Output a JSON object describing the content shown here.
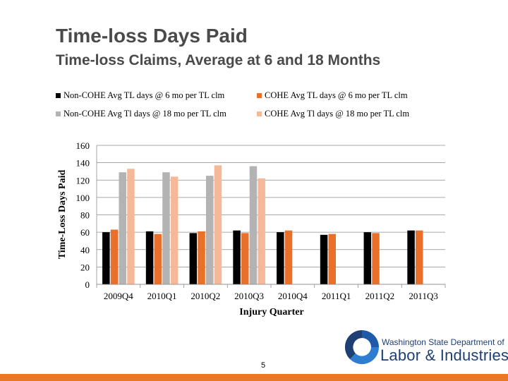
{
  "slide": {
    "title": "Time-loss Days Paid",
    "subtitle": "Time-loss Claims, Average at 6 and 18 Months",
    "page_number": "5"
  },
  "logo": {
    "line1": "Washington State Department of",
    "line2": "Labor & Industries"
  },
  "colors": {
    "non_cohe_6": "#000000",
    "cohe_6": "#e8702a",
    "non_cohe_18": "#b3b3b3",
    "cohe_18": "#f5b99a",
    "footer": "#e8782a",
    "logo_blue": "#1e5aa8"
  },
  "chart_data": {
    "type": "bar",
    "categories": [
      "2009Q4",
      "2010Q1",
      "2010Q2",
      "2010Q3",
      "2010Q4",
      "2011Q1",
      "2011Q2",
      "2011Q3"
    ],
    "series": [
      {
        "name": "Non-COHE Avg TL days @ 6 mo per TL clm",
        "color": "#000000",
        "values": [
          60,
          61,
          59,
          62,
          60,
          57,
          60,
          62
        ]
      },
      {
        "name": "COHE Avg TL days @ 6 mo per TL clm",
        "color": "#e8702a",
        "values": [
          63,
          58,
          61,
          59,
          62,
          58,
          59,
          62
        ]
      },
      {
        "name": "Non-COHE Avg Tl days @ 18 mo per TL clm",
        "color": "#b3b3b3",
        "values": [
          129,
          129,
          125,
          136,
          null,
          null,
          null,
          null
        ]
      },
      {
        "name": "COHE Avg Tl days @ 18 mo per TL clm",
        "color": "#f5b99a",
        "values": [
          133,
          124,
          137,
          122,
          null,
          null,
          null,
          null
        ]
      }
    ],
    "xlabel": "Injury Quarter",
    "ylabel": "Time-Loss Days Paid",
    "ylim": [
      0,
      160
    ],
    "yticks": [
      0,
      20,
      40,
      60,
      80,
      100,
      120,
      140,
      160
    ],
    "grid": true,
    "legend_position": "top"
  }
}
